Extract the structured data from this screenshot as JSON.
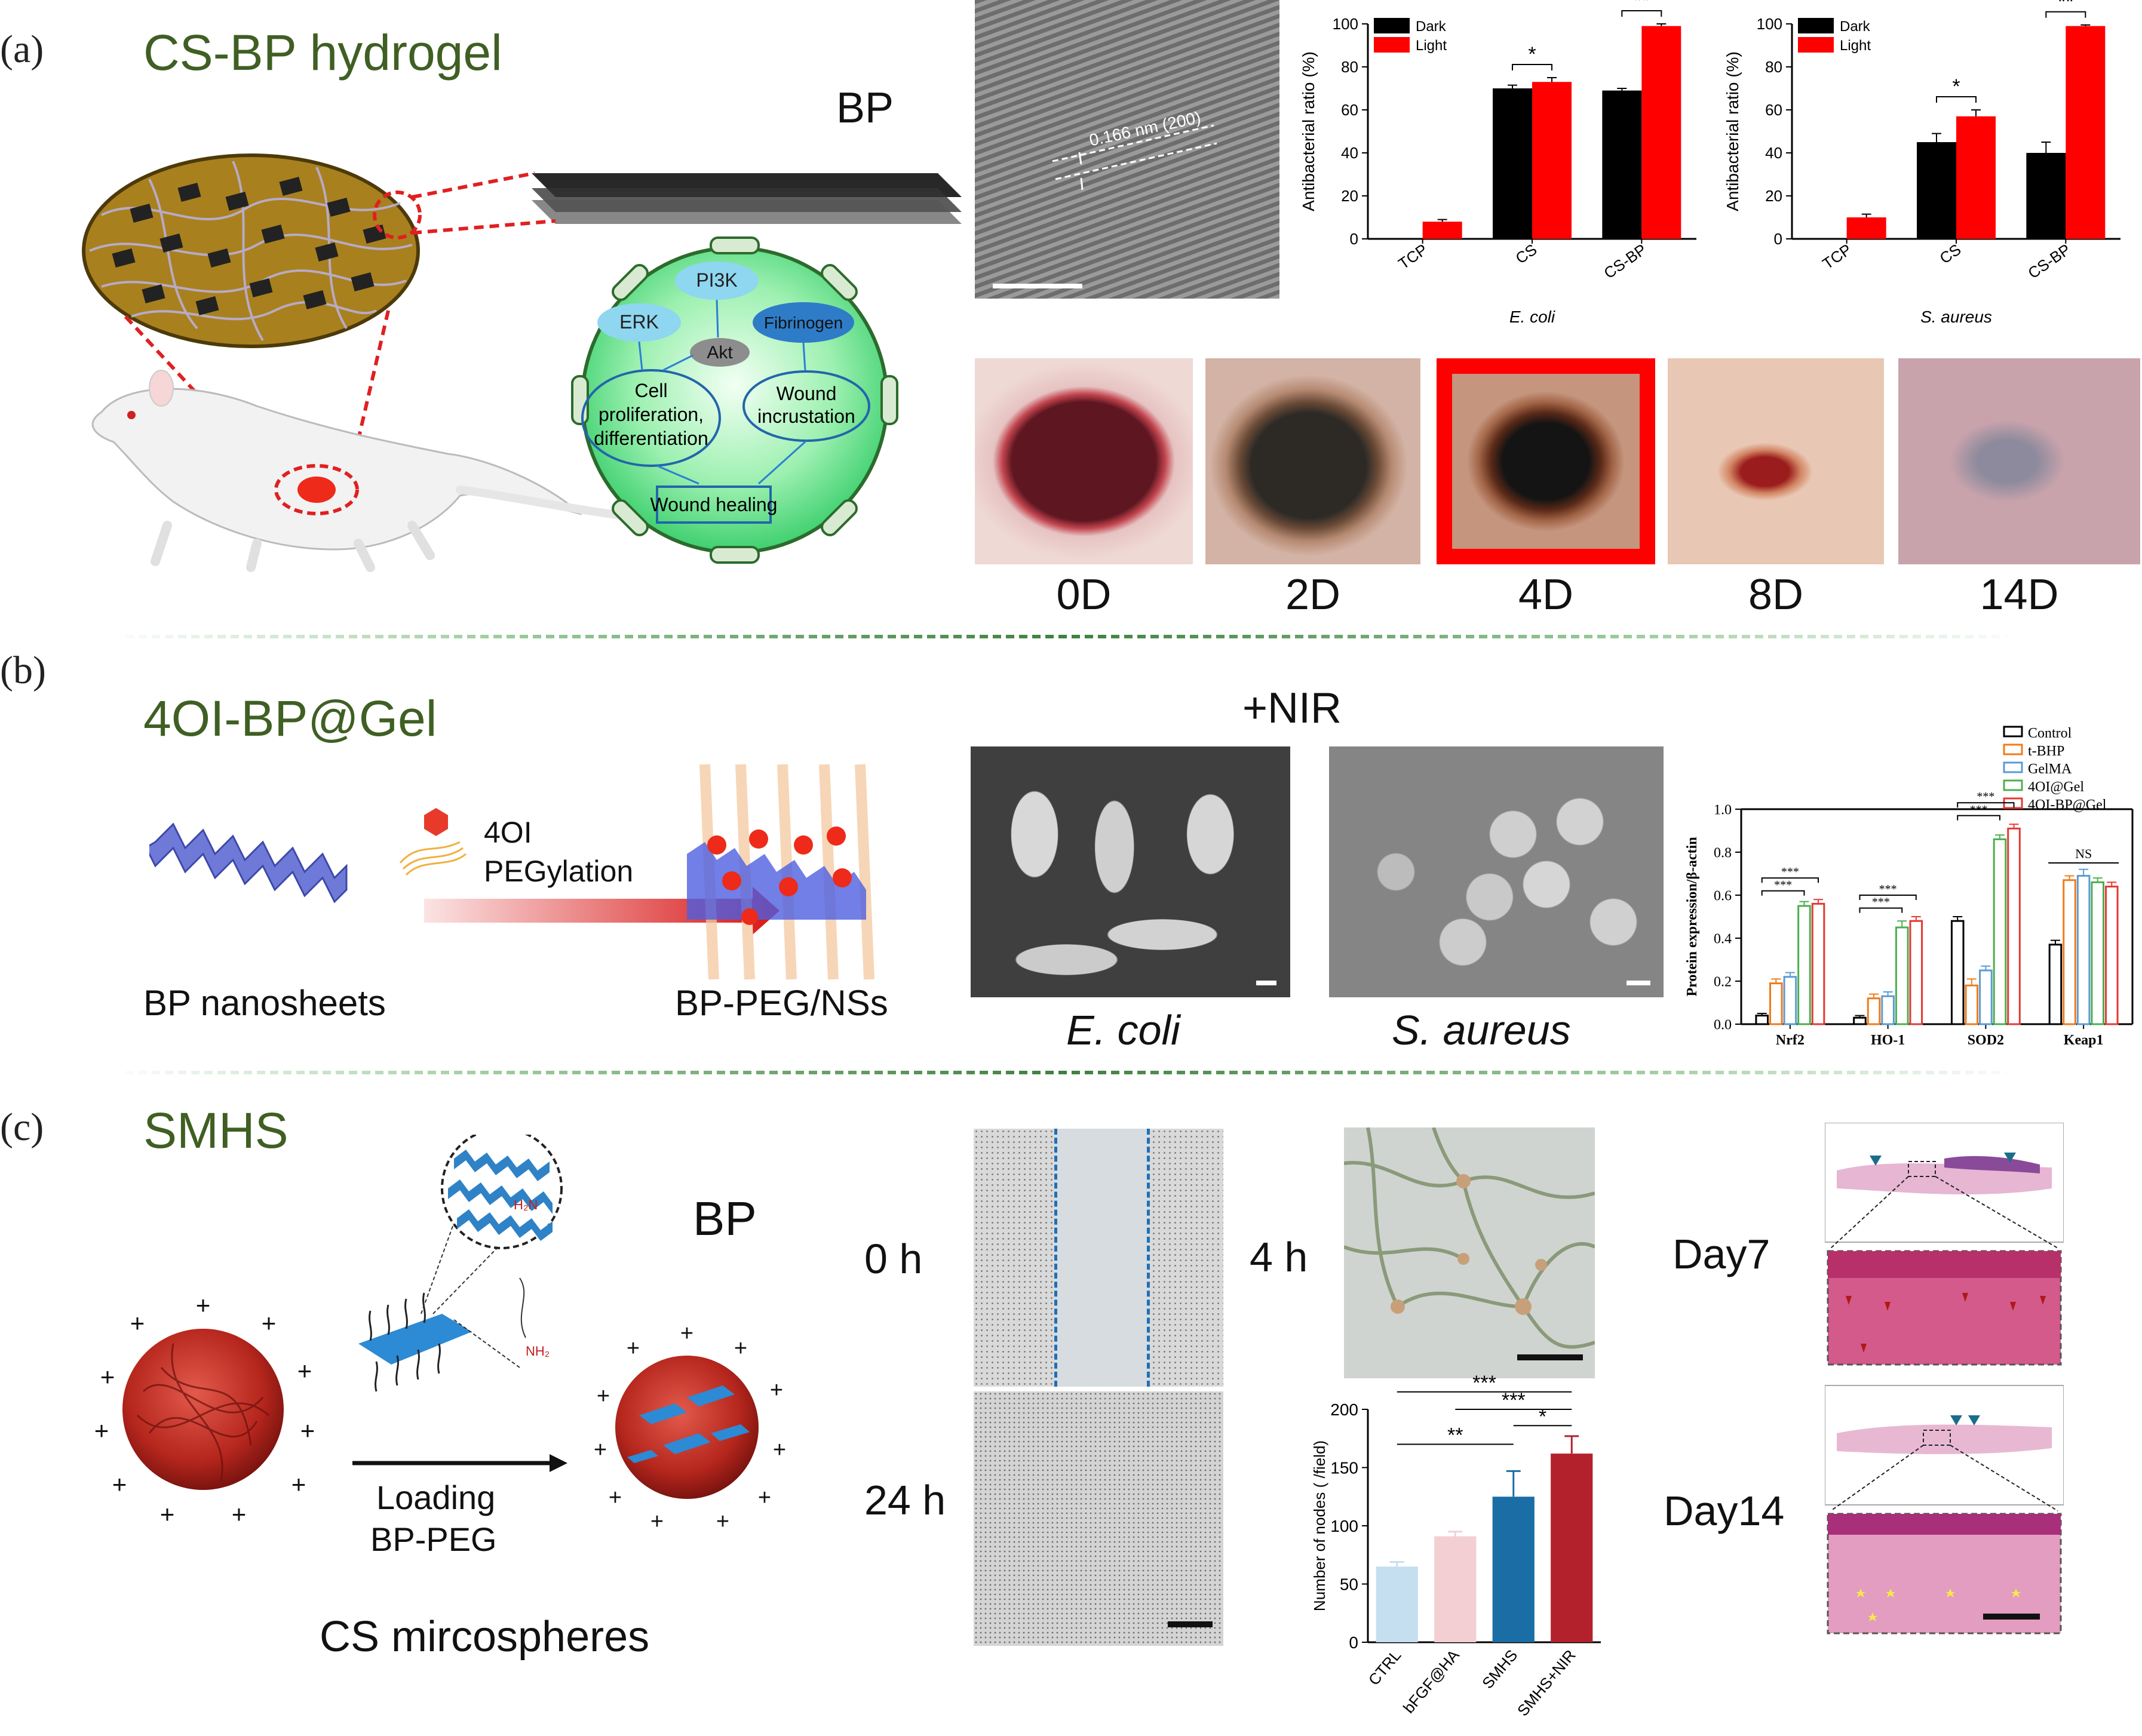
{
  "panels": {
    "a": {
      "label": "(a)",
      "title": "CS-BP hydrogel",
      "bp_label": "BP",
      "pathway": {
        "pi3k": "PI3K",
        "erk": "ERK",
        "fibrinogen": "Fibrinogen",
        "akt": "Akt",
        "cell_line1": "Cell",
        "cell_line2": "proliferation,",
        "cell_line3": "differentiation",
        "wound_line1": "Wound",
        "wound_line2": "incrustation",
        "healing": "Wound healing"
      },
      "tem_annotation": "0.166 nm (200)",
      "wound_days": [
        "0D",
        "2D",
        "4D",
        "8D",
        "14D"
      ]
    },
    "b": {
      "label": "(b)",
      "title": "4OI-BP@Gel",
      "bp_nanosheets": "BP nanosheets",
      "reagent_4oi": "4OI",
      "pegylation": "PEGylation",
      "bp_peg": "BP-PEG/NSs",
      "nir": "+NIR",
      "ecoli": "E. coli",
      "saureus": "S. aureus"
    },
    "c": {
      "label": "(c)",
      "title": "SMHS",
      "bp_label": "BP",
      "loading_line1": "Loading",
      "loading_line2": "BP-PEG",
      "microspheres": "CS mircospheres",
      "t0": "0 h",
      "t24": "24 h",
      "t4": "4 h",
      "day7": "Day7",
      "day14": "Day14",
      "h2n": "H₂N",
      "nh2": "NH₂"
    }
  },
  "chart_data": [
    {
      "type": "bar",
      "subtitle": "E. coli",
      "ylabel": "Antibacterial ratio (%)",
      "ylim": [
        0,
        100
      ],
      "yticks": [
        0,
        20,
        40,
        60,
        80,
        100
      ],
      "categories": [
        "TCP",
        "CS",
        "CS-BP"
      ],
      "series": [
        {
          "name": "Dark",
          "color": "#000000",
          "values": [
            0,
            70,
            69
          ],
          "errors": [
            0,
            1.5,
            1
          ]
        },
        {
          "name": "Light",
          "color": "#ff0000",
          "values": [
            8,
            73,
            99
          ],
          "errors": [
            1,
            2,
            1
          ]
        }
      ],
      "significance": [
        {
          "category": "CS",
          "label": "*"
        },
        {
          "category": "CS-BP",
          "label": "**"
        }
      ]
    },
    {
      "type": "bar",
      "subtitle": "S. aureus",
      "ylabel": "Antibacterial ratio (%)",
      "ylim": [
        0,
        100
      ],
      "yticks": [
        0,
        20,
        40,
        60,
        80,
        100
      ],
      "categories": [
        "TCP",
        "CS",
        "CS-BP"
      ],
      "series": [
        {
          "name": "Dark",
          "color": "#000000",
          "values": [
            0,
            45,
            40
          ],
          "errors": [
            0,
            4,
            5
          ]
        },
        {
          "name": "Light",
          "color": "#ff0000",
          "values": [
            10,
            57,
            99
          ],
          "errors": [
            1.5,
            3,
            0.5
          ]
        }
      ],
      "significance": [
        {
          "category": "CS",
          "label": "*"
        },
        {
          "category": "CS-BP",
          "label": "**"
        }
      ]
    },
    {
      "type": "bar",
      "ylabel": "Protein expression/β-actin",
      "ylim": [
        0,
        1.0
      ],
      "yticks": [
        0.0,
        0.2,
        0.4,
        0.6,
        0.8,
        1.0
      ],
      "categories": [
        "Nrf2",
        "HO-1",
        "SOD2",
        "Keap1"
      ],
      "series": [
        {
          "name": "Control",
          "color": "#000000",
          "values": [
            0.04,
            0.03,
            0.48,
            0.37
          ],
          "errors": [
            0.01,
            0.01,
            0.02,
            0.02
          ]
        },
        {
          "name": "t-BHP",
          "color": "#f07b1a",
          "values": [
            0.19,
            0.12,
            0.18,
            0.67
          ],
          "errors": [
            0.02,
            0.02,
            0.03,
            0.02
          ]
        },
        {
          "name": "GelMA",
          "color": "#5b9bd5",
          "values": [
            0.22,
            0.13,
            0.25,
            0.69
          ],
          "errors": [
            0.02,
            0.02,
            0.02,
            0.03
          ]
        },
        {
          "name": "4OI@Gel",
          "color": "#4caf50",
          "values": [
            0.55,
            0.45,
            0.86,
            0.66
          ],
          "errors": [
            0.02,
            0.03,
            0.02,
            0.02
          ]
        },
        {
          "name": "4OI-BP@Gel",
          "color": "#e53935",
          "values": [
            0.56,
            0.48,
            0.91,
            0.64
          ],
          "errors": [
            0.02,
            0.02,
            0.02,
            0.02
          ]
        }
      ],
      "significance": [
        {
          "category": "Nrf2",
          "labels": [
            "***",
            "***"
          ]
        },
        {
          "category": "HO-1",
          "labels": [
            "***",
            "***"
          ]
        },
        {
          "category": "SOD2",
          "labels": [
            "***",
            "***"
          ]
        },
        {
          "category": "Keap1",
          "labels": [
            "NS"
          ]
        }
      ]
    },
    {
      "type": "bar",
      "ylabel": "Number of nodes ( /field)",
      "ylim": [
        0,
        200
      ],
      "yticks": [
        0,
        50,
        100,
        150,
        200
      ],
      "categories": [
        "CTRL",
        "bFGF@HA",
        "SMHS",
        "SMHS+NIR"
      ],
      "values": [
        65,
        91,
        125,
        162
      ],
      "errors": [
        4,
        4,
        22,
        15
      ],
      "colors": [
        "#c5dff0",
        "#f3cfd3",
        "#1a6ea5",
        "#b3222c"
      ],
      "significance": [
        {
          "from": "CTRL",
          "to": "SMHS",
          "label": "**"
        },
        {
          "from": "CTRL",
          "to": "SMHS+NIR",
          "label": "***"
        },
        {
          "from": "bFGF@HA",
          "to": "SMHS+NIR",
          "label": "***"
        },
        {
          "from": "SMHS",
          "to": "SMHS+NIR",
          "label": "*"
        }
      ]
    }
  ]
}
